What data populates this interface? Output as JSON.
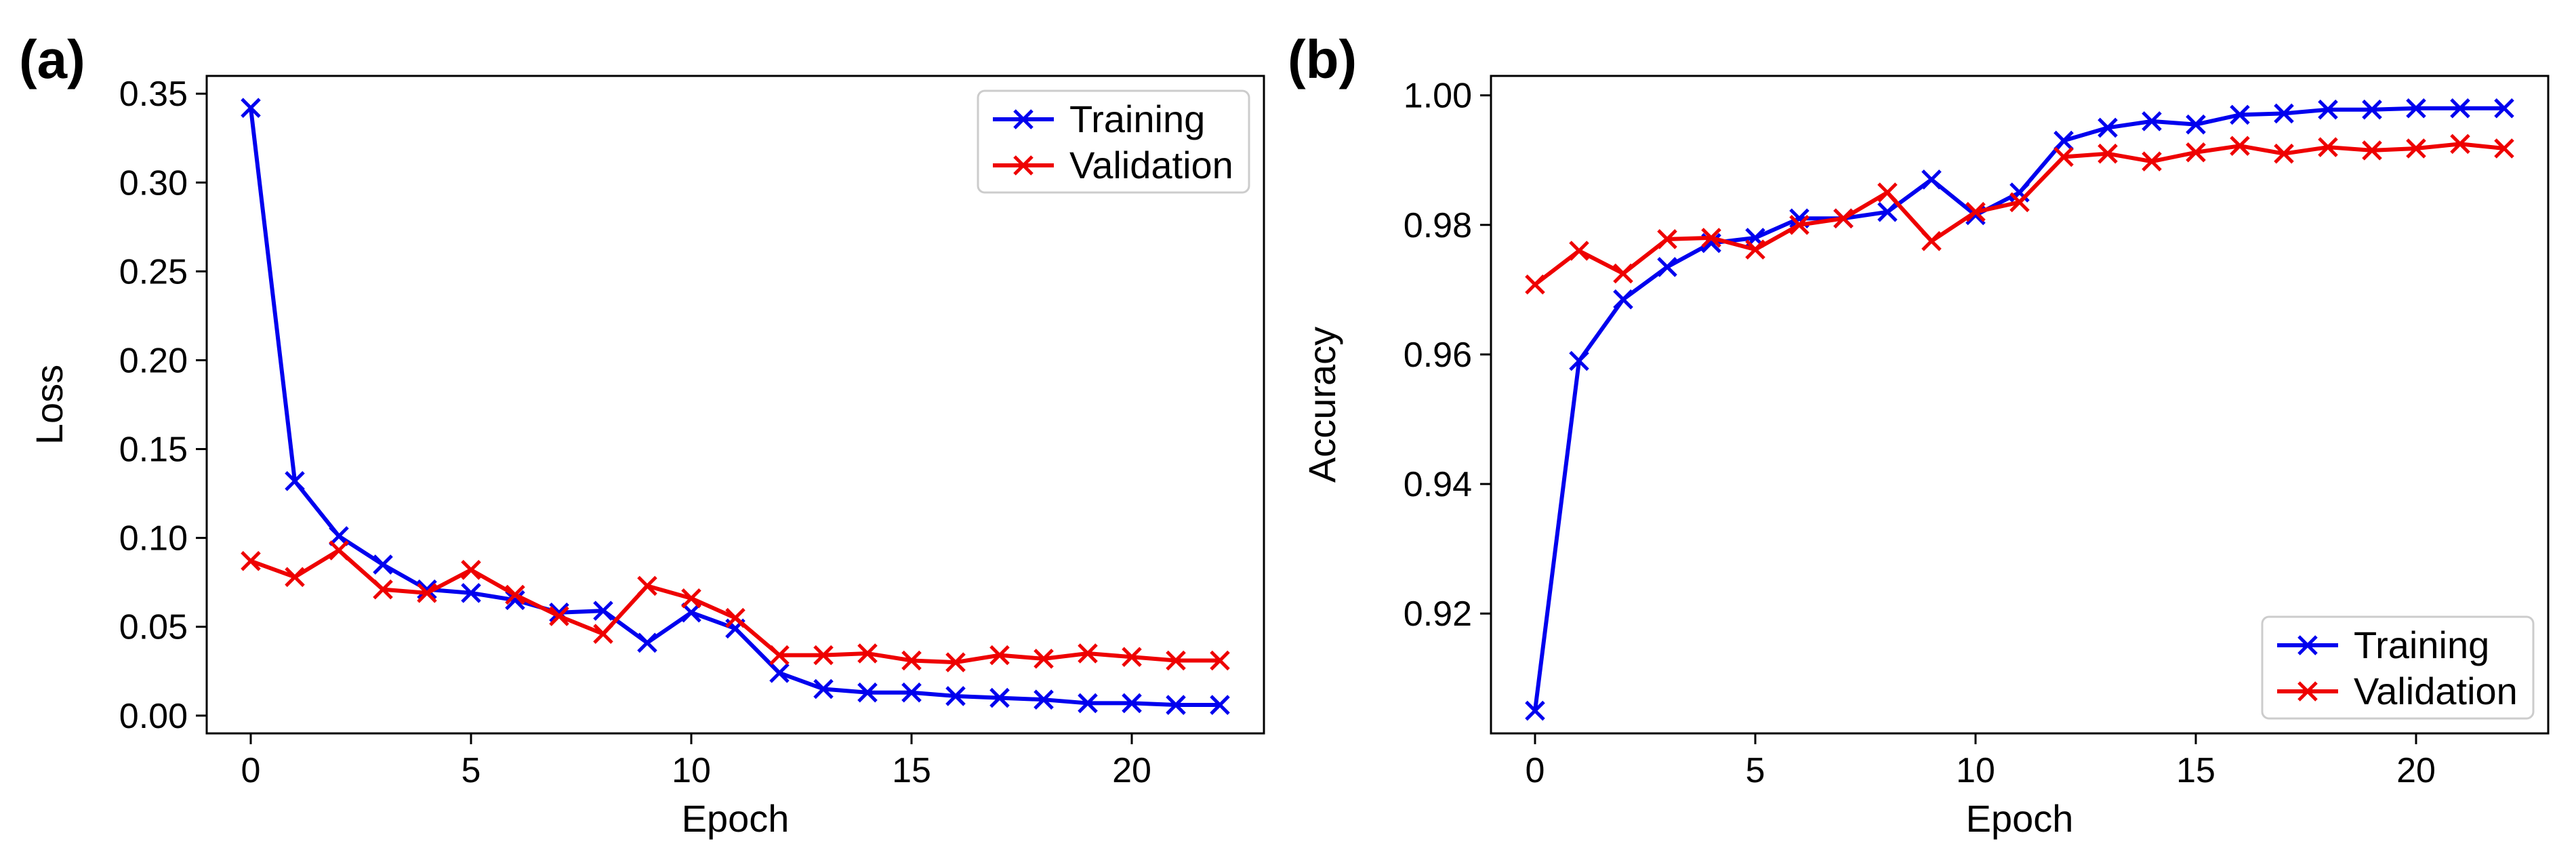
{
  "chart_data": [
    {
      "panel": "(a)",
      "type": "line",
      "xlabel": "Epoch",
      "ylabel": "Loss",
      "xlim": [
        -1,
        23
      ],
      "ylim": [
        -0.01,
        0.36
      ],
      "xticks": [
        0,
        5,
        10,
        15,
        20
      ],
      "xtick_labels": [
        "0",
        "5",
        "10",
        "15",
        "20"
      ],
      "yticks": [
        0.0,
        0.05,
        0.1,
        0.15,
        0.2,
        0.25,
        0.3,
        0.35
      ],
      "ytick_labels": [
        "0.00",
        "0.05",
        "0.10",
        "0.15",
        "0.20",
        "0.25",
        "0.30",
        "0.35"
      ],
      "legend_position": "top-right",
      "x": [
        0,
        1,
        2,
        3,
        4,
        5,
        6,
        7,
        8,
        9,
        10,
        11,
        12,
        13,
        14,
        15,
        16,
        17,
        18,
        19,
        20,
        21,
        22
      ],
      "series": [
        {
          "name": "Training",
          "color": "#0000ee",
          "values": [
            0.342,
            0.132,
            0.101,
            0.085,
            0.071,
            0.069,
            0.065,
            0.058,
            0.059,
            0.041,
            0.058,
            0.049,
            0.024,
            0.015,
            0.013,
            0.013,
            0.011,
            0.01,
            0.009,
            0.007,
            0.007,
            0.006,
            0.006
          ]
        },
        {
          "name": "Validation",
          "color": "#ee0000",
          "values": [
            0.087,
            0.078,
            0.093,
            0.071,
            0.069,
            0.082,
            0.068,
            0.056,
            0.046,
            0.073,
            0.066,
            0.055,
            0.034,
            0.034,
            0.035,
            0.031,
            0.03,
            0.034,
            0.032,
            0.035,
            0.033,
            0.031,
            0.031
          ]
        }
      ]
    },
    {
      "panel": "(b)",
      "type": "line",
      "xlabel": "Epoch",
      "ylabel": "Accuracy",
      "xlim": [
        -1,
        23
      ],
      "ylim": [
        0.9015,
        1.003
      ],
      "xticks": [
        0,
        5,
        10,
        15,
        20
      ],
      "xtick_labels": [
        "0",
        "5",
        "10",
        "15",
        "20"
      ],
      "yticks": [
        0.92,
        0.94,
        0.96,
        0.98,
        1.0
      ],
      "ytick_labels": [
        "0.92",
        "0.94",
        "0.96",
        "0.98",
        "1.00"
      ],
      "legend_position": "bottom-right",
      "x": [
        0,
        1,
        2,
        3,
        4,
        5,
        6,
        7,
        8,
        9,
        10,
        11,
        12,
        13,
        14,
        15,
        16,
        17,
        18,
        19,
        20,
        21,
        22
      ],
      "series": [
        {
          "name": "Training",
          "color": "#0000ee",
          "values": [
            0.905,
            0.959,
            0.9685,
            0.9735,
            0.9772,
            0.978,
            0.981,
            0.981,
            0.982,
            0.987,
            0.9815,
            0.985,
            0.993,
            0.995,
            0.996,
            0.9955,
            0.997,
            0.9972,
            0.9978,
            0.9978,
            0.998,
            0.998,
            0.998
          ]
        },
        {
          "name": "Validation",
          "color": "#ee0000",
          "values": [
            0.9708,
            0.976,
            0.9725,
            0.9778,
            0.978,
            0.9762,
            0.98,
            0.981,
            0.985,
            0.9775,
            0.982,
            0.9835,
            0.9905,
            0.991,
            0.9898,
            0.9912,
            0.9922,
            0.991,
            0.992,
            0.9915,
            0.9918,
            0.9925,
            0.9918
          ]
        }
      ]
    }
  ]
}
